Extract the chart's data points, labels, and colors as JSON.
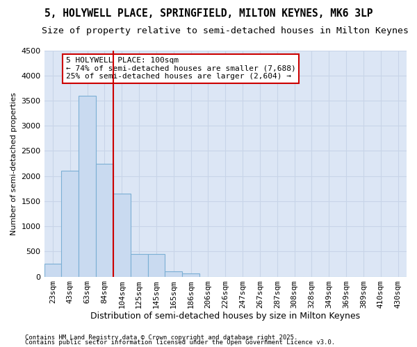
{
  "title": "5, HOLYWELL PLACE, SPRINGFIELD, MILTON KEYNES, MK6 3LP",
  "subtitle": "Size of property relative to semi-detached houses in Milton Keynes",
  "xlabel": "Distribution of semi-detached houses by size in Milton Keynes",
  "ylabel": "Number of semi-detached properties",
  "footer1": "Contains HM Land Registry data © Crown copyright and database right 2025.",
  "footer2": "Contains public sector information licensed under the Open Government Licence v3.0.",
  "bar_labels": [
    "23sqm",
    "43sqm",
    "63sqm",
    "84sqm",
    "104sqm",
    "125sqm",
    "145sqm",
    "165sqm",
    "186sqm",
    "206sqm",
    "226sqm",
    "247sqm",
    "267sqm",
    "287sqm",
    "308sqm",
    "328sqm",
    "349sqm",
    "369sqm",
    "389sqm",
    "410sqm",
    "430sqm"
  ],
  "bar_values": [
    250,
    2100,
    3600,
    2250,
    1650,
    450,
    450,
    100,
    60,
    0,
    0,
    0,
    0,
    0,
    0,
    0,
    0,
    0,
    0,
    0,
    0
  ],
  "bar_color": "#c9daf0",
  "bar_edge_color": "#7bafd4",
  "grid_color": "#c8d4e8",
  "background_color": "#dce6f5",
  "vline_x_idx": 3.5,
  "vline_color": "#cc0000",
  "ann_line1": "5 HOLYWELL PLACE: 100sqm",
  "ann_line2": "← 74% of semi-detached houses are smaller (7,688)",
  "ann_line3": "25% of semi-detached houses are larger (2,604) →",
  "annotation_box_color": "#cc0000",
  "ylim": [
    0,
    4500
  ],
  "yticks": [
    0,
    500,
    1000,
    1500,
    2000,
    2500,
    3000,
    3500,
    4000,
    4500
  ],
  "title_fontsize": 10.5,
  "subtitle_fontsize": 9.5,
  "ylabel_fontsize": 8,
  "xlabel_fontsize": 9,
  "tick_fontsize": 8,
  "footer_fontsize": 6.5,
  "ann_fontsize": 8
}
